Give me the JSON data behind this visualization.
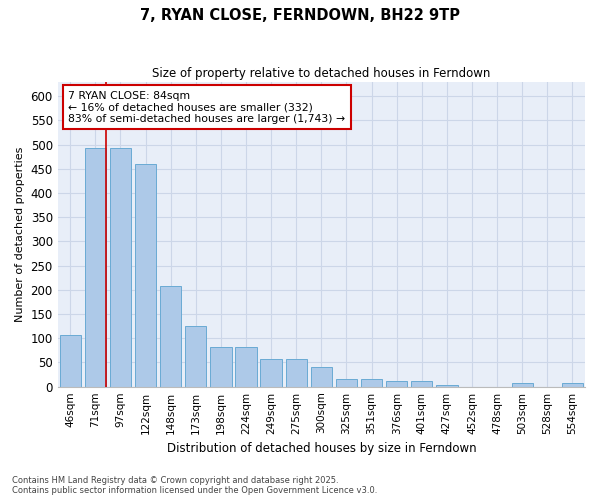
{
  "title": "7, RYAN CLOSE, FERNDOWN, BH22 9TP",
  "subtitle": "Size of property relative to detached houses in Ferndown",
  "xlabel": "Distribution of detached houses by size in Ferndown",
  "ylabel": "Number of detached properties",
  "footnote1": "Contains HM Land Registry data © Crown copyright and database right 2025.",
  "footnote2": "Contains public sector information licensed under the Open Government Licence v3.0.",
  "categories": [
    "46sqm",
    "71sqm",
    "97sqm",
    "122sqm",
    "148sqm",
    "173sqm",
    "198sqm",
    "224sqm",
    "249sqm",
    "275sqm",
    "300sqm",
    "325sqm",
    "351sqm",
    "376sqm",
    "401sqm",
    "427sqm",
    "452sqm",
    "478sqm",
    "503sqm",
    "528sqm",
    "554sqm"
  ],
  "values": [
    107,
    493,
    492,
    460,
    207,
    125,
    82,
    82,
    57,
    57,
    40,
    15,
    15,
    11,
    11,
    4,
    0,
    0,
    7,
    0,
    7
  ],
  "bar_color": "#adc9e8",
  "bar_edge_color": "#6aaad4",
  "grid_color": "#ccd6e8",
  "background_color": "#e8eef8",
  "annotation_box_text": "7 RYAN CLOSE: 84sqm\n← 16% of detached houses are smaller (332)\n83% of semi-detached houses are larger (1,743) →",
  "annotation_box_color": "#cc0000",
  "vline_x_index": 1,
  "vline_color": "#cc0000",
  "ylim": [
    0,
    630
  ],
  "yticks": [
    0,
    50,
    100,
    150,
    200,
    250,
    300,
    350,
    400,
    450,
    500,
    550,
    600
  ]
}
